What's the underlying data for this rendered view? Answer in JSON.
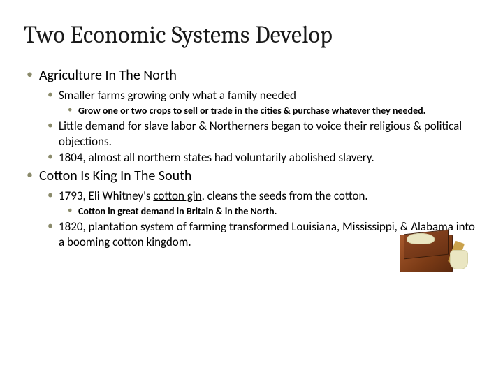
{
  "title": "Two Economic Systems Develop",
  "bullets": {
    "north": {
      "heading": "Agriculture In The North",
      "sub1": "Smaller farms growing only what a family needed",
      "sub1a": "Grow one or two crops to sell or trade in the cities & purchase whatever they needed.",
      "sub2": "Little demand for slave labor & Northerners began to voice their religious & political objections.",
      "sub3": "1804, almost all northern states had voluntarily abolished slavery."
    },
    "south": {
      "heading": "Cotton Is King In The South",
      "sub1_pre": "1793, Eli Whitney's ",
      "sub1_underline": "cotton gin",
      "sub1_post": ", cleans the seeds from the cotton.",
      "sub1a": "Cotton in great demand in Britain & in the North.",
      "sub2": "1820, plantation system of farming transformed Louisiana, Mississippi, & Alabama into a booming cotton kingdom."
    }
  },
  "style": {
    "bullet_color": "#8a8a6a",
    "title_fontsize": 34,
    "lvl1_fontsize": 20,
    "lvl2_fontsize": 17,
    "lvl3_fontsize": 14,
    "background": "#ffffff",
    "text_color": "#000000"
  },
  "image": {
    "name": "cotton-gin",
    "box_color": "#7b3b16",
    "cotton_color": "#eae6c2",
    "crank_color": "#caa24c"
  }
}
